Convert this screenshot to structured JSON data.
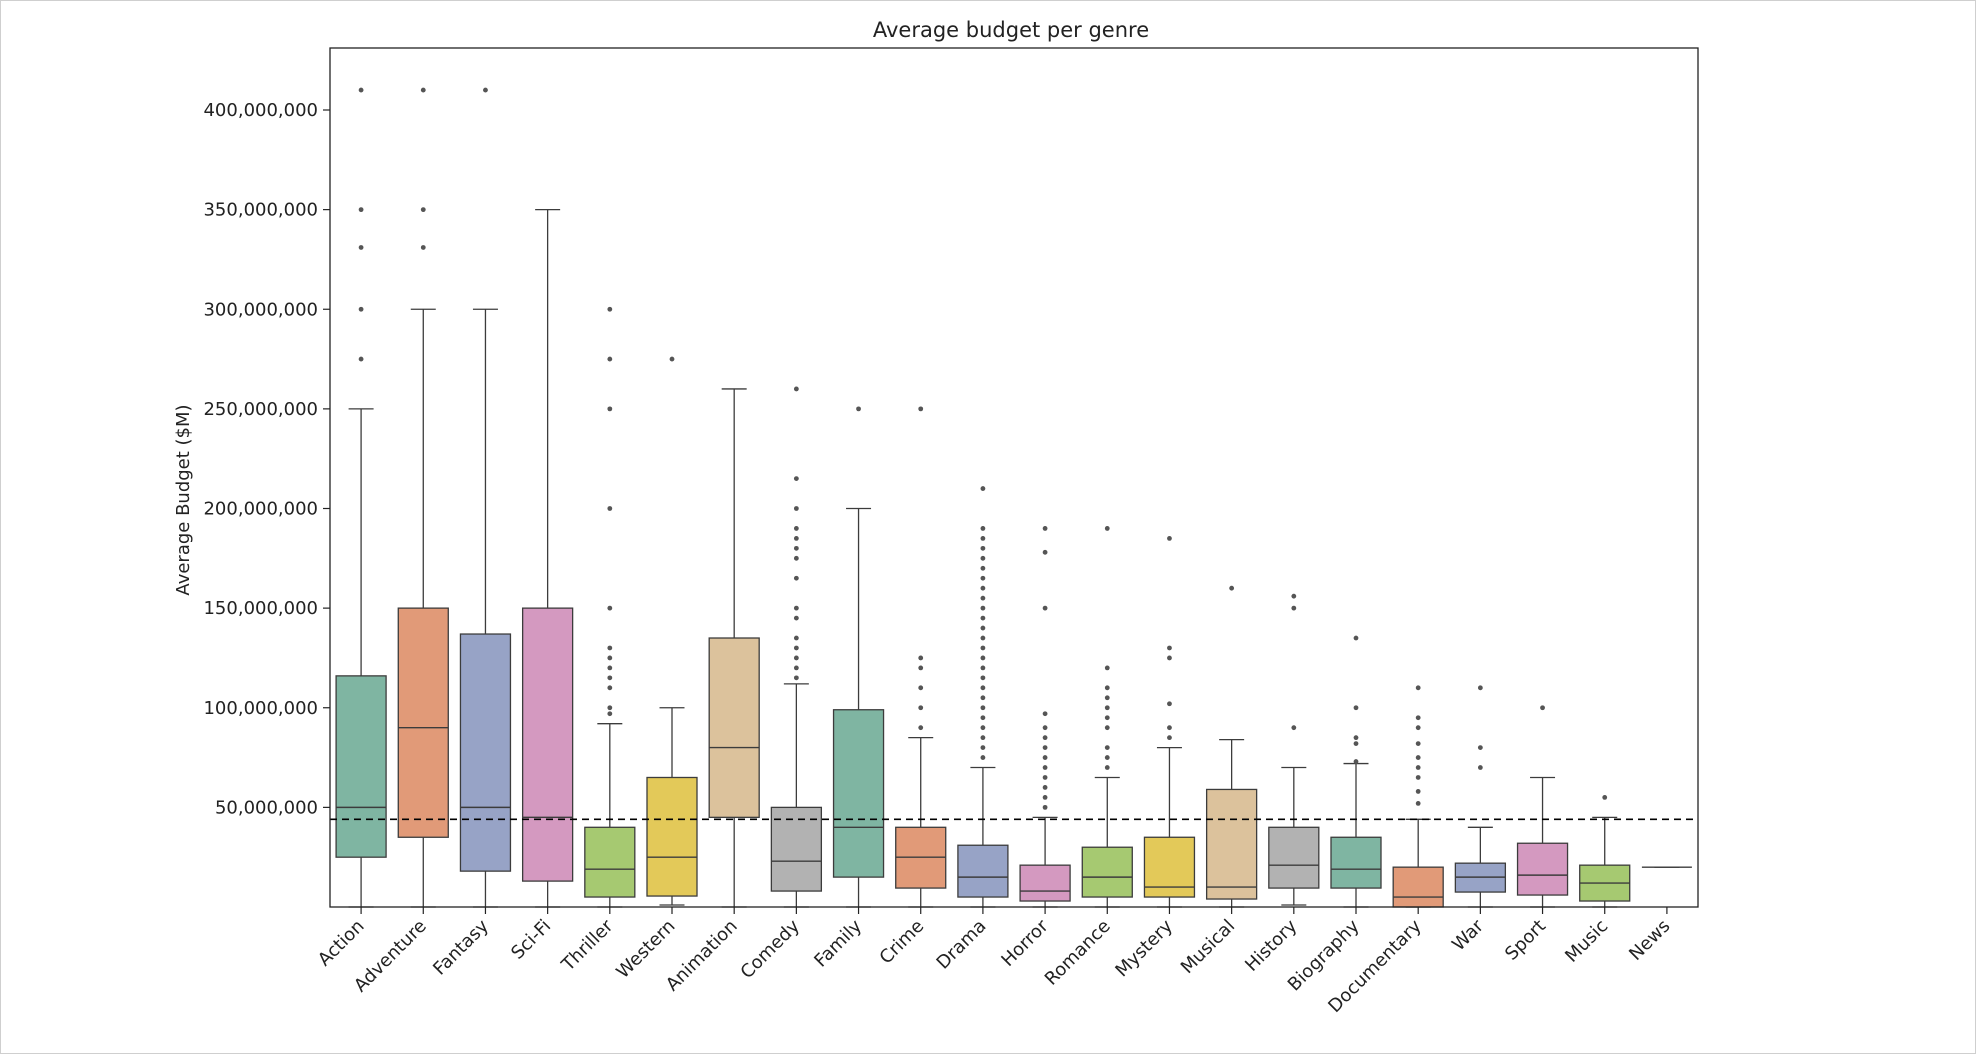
{
  "chart_data": {
    "type": "box",
    "title": "Average budget per genre",
    "xlabel": "",
    "ylabel": "Average Budget ($M)",
    "ylim": [
      0,
      430000000
    ],
    "yticks": [
      50000000,
      100000000,
      150000000,
      200000000,
      250000000,
      300000000,
      350000000,
      400000000
    ],
    "ytick_labels": [
      "50,000,000",
      "100,000,000",
      "150,000,000",
      "200,000,000",
      "250,000,000",
      "300,000,000",
      "350,000,000",
      "400,000,000"
    ],
    "reference_line": {
      "y": 44000000,
      "style": "dashed",
      "color": "#000000"
    },
    "grid": false,
    "categories": [
      "Action",
      "Adventure",
      "Fantasy",
      "Sci-Fi",
      "Thriller",
      "Western",
      "Animation",
      "Comedy",
      "Family",
      "Crime",
      "Drama",
      "Horror",
      "Romance",
      "Mystery",
      "Musical",
      "History",
      "Biography",
      "Documentary",
      "War",
      "Sport",
      "Music",
      "News"
    ],
    "boxes": [
      {
        "genre": "Action",
        "color": "#7fb5a2",
        "whisker_low": 0,
        "q1": 25000000,
        "median": 50000000,
        "q3": 116000000,
        "whisker_high": 250000000,
        "outliers": [
          410000000,
          350000000,
          331000000,
          300000000,
          275000000
        ]
      },
      {
        "genre": "Adventure",
        "color": "#e19a78",
        "whisker_low": 0,
        "q1": 35000000,
        "median": 90000000,
        "q3": 150000000,
        "whisker_high": 300000000,
        "outliers": [
          410000000,
          350000000,
          331000000
        ]
      },
      {
        "genre": "Fantasy",
        "color": "#97a3c6",
        "whisker_low": 0,
        "q1": 18000000,
        "median": 50000000,
        "q3": 137000000,
        "whisker_high": 300000000,
        "outliers": [
          410000000
        ]
      },
      {
        "genre": "Sci-Fi",
        "color": "#d499c0",
        "whisker_low": 0,
        "q1": 13000000,
        "median": 45000000,
        "q3": 150000000,
        "whisker_high": 350000000,
        "outliers": []
      },
      {
        "genre": "Thriller",
        "color": "#a6c971",
        "whisker_low": 0,
        "q1": 5000000,
        "median": 19000000,
        "q3": 40000000,
        "whisker_high": 92000000,
        "outliers": [
          300000000,
          275000000,
          250000000,
          200000000,
          150000000,
          130000000,
          125000000,
          120000000,
          115000000,
          110000000,
          100000000,
          97000000
        ]
      },
      {
        "genre": "Western",
        "color": "#e3c959",
        "whisker_low": 1000000,
        "q1": 5500000,
        "median": 25000000,
        "q3": 65000000,
        "whisker_high": 100000000,
        "outliers": [
          275000000
        ]
      },
      {
        "genre": "Animation",
        "color": "#dcc29c",
        "whisker_low": 0,
        "q1": 45000000,
        "median": 80000000,
        "q3": 135000000,
        "whisker_high": 260000000,
        "outliers": []
      },
      {
        "genre": "Comedy",
        "color": "#b2b2b2",
        "whisker_low": 0,
        "q1": 8000000,
        "median": 23000000,
        "q3": 50000000,
        "whisker_high": 112000000,
        "outliers": [
          260000000,
          215000000,
          200000000,
          190000000,
          185000000,
          180000000,
          175000000,
          165000000,
          150000000,
          145000000,
          135000000,
          130000000,
          125000000,
          120000000,
          115000000
        ]
      },
      {
        "genre": "Family",
        "color": "#7fb5a2",
        "whisker_low": 0,
        "q1": 15000000,
        "median": 40000000,
        "q3": 99000000,
        "whisker_high": 200000000,
        "outliers": [
          250000000
        ]
      },
      {
        "genre": "Crime",
        "color": "#e19a78",
        "whisker_low": 0,
        "q1": 9500000,
        "median": 25000000,
        "q3": 40000000,
        "whisker_high": 85000000,
        "outliers": [
          250000000,
          125000000,
          120000000,
          110000000,
          100000000,
          90000000
        ]
      },
      {
        "genre": "Drama",
        "color": "#97a3c6",
        "whisker_low": 0,
        "q1": 5000000,
        "median": 15000000,
        "q3": 31000000,
        "whisker_high": 70000000,
        "outliers": [
          210000000,
          190000000,
          185000000,
          180000000,
          175000000,
          170000000,
          165000000,
          160000000,
          155000000,
          150000000,
          145000000,
          140000000,
          135000000,
          130000000,
          125000000,
          120000000,
          115000000,
          110000000,
          105000000,
          100000000,
          95000000,
          90000000,
          85000000,
          80000000,
          75000000
        ]
      },
      {
        "genre": "Horror",
        "color": "#d499c0",
        "whisker_low": 0,
        "q1": 3000000,
        "median": 8000000,
        "q3": 21000000,
        "whisker_high": 45000000,
        "outliers": [
          190000000,
          178000000,
          150000000,
          97000000,
          90000000,
          85000000,
          80000000,
          75000000,
          70000000,
          65000000,
          60000000,
          55000000,
          50000000
        ]
      },
      {
        "genre": "Romance",
        "color": "#a6c971",
        "whisker_low": 0,
        "q1": 5000000,
        "median": 15000000,
        "q3": 30000000,
        "whisker_high": 65000000,
        "outliers": [
          190000000,
          120000000,
          110000000,
          105000000,
          100000000,
          95000000,
          90000000,
          80000000,
          75000000,
          70000000
        ]
      },
      {
        "genre": "Mystery",
        "color": "#e3c959",
        "whisker_low": 0,
        "q1": 5000000,
        "median": 10000000,
        "q3": 35000000,
        "whisker_high": 80000000,
        "outliers": [
          185000000,
          130000000,
          125000000,
          102000000,
          90000000,
          85000000
        ]
      },
      {
        "genre": "Musical",
        "color": "#dcc29c",
        "whisker_low": 0,
        "q1": 4000000,
        "median": 10000000,
        "q3": 59000000,
        "whisker_high": 84000000,
        "outliers": [
          160000000
        ]
      },
      {
        "genre": "History",
        "color": "#b2b2b2",
        "whisker_low": 1000000,
        "q1": 9500000,
        "median": 21000000,
        "q3": 40000000,
        "whisker_high": 70000000,
        "outliers": [
          156000000,
          150000000,
          90000000
        ]
      },
      {
        "genre": "Biography",
        "color": "#7fb5a2",
        "whisker_low": 0,
        "q1": 9500000,
        "median": 19000000,
        "q3": 35000000,
        "whisker_high": 72000000,
        "outliers": [
          135000000,
          100000000,
          85000000,
          82000000,
          73000000
        ]
      },
      {
        "genre": "Documentary",
        "color": "#e19a78",
        "whisker_low": 0,
        "q1": 0,
        "median": 5000000,
        "q3": 20000000,
        "whisker_high": 44000000,
        "outliers": [
          110000000,
          95000000,
          90000000,
          82000000,
          75000000,
          70000000,
          65000000,
          58000000,
          52000000
        ]
      },
      {
        "genre": "War",
        "color": "#97a3c6",
        "whisker_low": 0,
        "q1": 7500000,
        "median": 15000000,
        "q3": 22000000,
        "whisker_high": 40000000,
        "outliers": [
          110000000,
          80000000,
          70000000
        ]
      },
      {
        "genre": "Sport",
        "color": "#d499c0",
        "whisker_low": 0,
        "q1": 6000000,
        "median": 16000000,
        "q3": 32000000,
        "whisker_high": 65000000,
        "outliers": [
          100000000
        ]
      },
      {
        "genre": "Music",
        "color": "#a6c971",
        "whisker_low": 0,
        "q1": 3000000,
        "median": 12000000,
        "q3": 21000000,
        "whisker_high": 45000000,
        "outliers": [
          55000000
        ]
      },
      {
        "genre": "News",
        "color": "#7fb5a2",
        "whisker_low": 20000000,
        "q1": 20000000,
        "median": 20000000,
        "q3": 20000000,
        "whisker_high": 20000000,
        "outliers": []
      }
    ]
  }
}
